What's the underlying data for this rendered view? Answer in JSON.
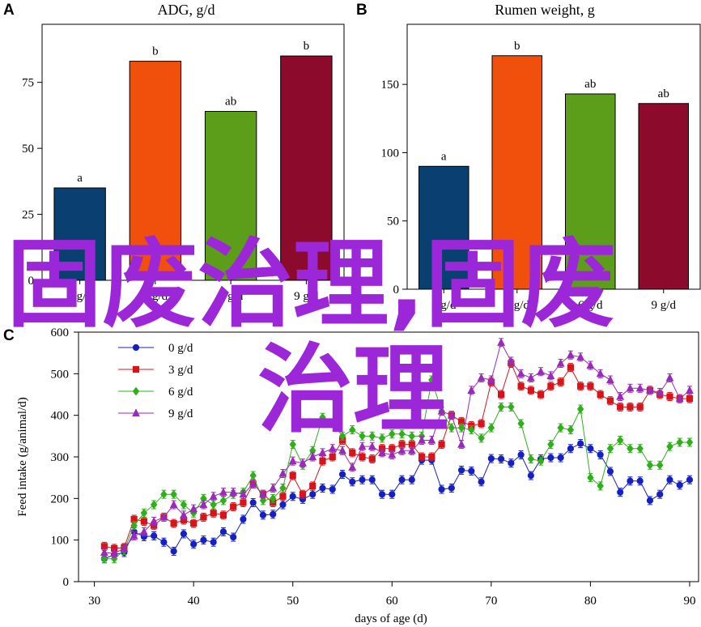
{
  "chart_data": [
    {
      "panel": "A",
      "type": "bar",
      "title": "ADG, g/d",
      "categories": [
        "0 g/d",
        "3 g/d",
        "6 g/d",
        "9 g/d"
      ],
      "values": [
        35,
        83,
        64,
        85
      ],
      "labels": [
        "a",
        "b",
        "ab",
        "b"
      ],
      "colors": [
        "#0a3f72",
        "#f14f0c",
        "#5c9e1a",
        "#8c0a2c"
      ],
      "ylim": [
        0,
        97
      ],
      "yticks": [
        0,
        25,
        50,
        75
      ],
      "xlabel": "",
      "ylabel": ""
    },
    {
      "panel": "B",
      "type": "bar",
      "title": "Rumen weight, g",
      "categories": [
        "0 g/d",
        "3 g/d",
        "6 g/d",
        "9 g/d"
      ],
      "values": [
        90,
        171,
        143,
        136
      ],
      "labels": [
        "a",
        "b",
        "ab",
        "ab"
      ],
      "colors": [
        "#0a3f72",
        "#f14f0c",
        "#5c9e1a",
        "#8c0a2c"
      ],
      "ylim": [
        0,
        194
      ],
      "yticks": [
        0,
        50,
        100,
        150
      ],
      "xlabel": "",
      "ylabel": ""
    },
    {
      "panel": "C",
      "type": "line",
      "xlabel": "days of age (d)",
      "ylabel": "Feed intake (g/animal/d)",
      "xlim": [
        30,
        90
      ],
      "ylim": [
        0,
        600
      ],
      "xticks": [
        30,
        40,
        50,
        60,
        70,
        80,
        90
      ],
      "yticks": [
        0,
        100,
        200,
        300,
        400,
        500,
        600
      ],
      "legend_position": "top-left",
      "x": [
        31,
        32,
        33,
        34,
        35,
        36,
        37,
        38,
        39,
        40,
        41,
        42,
        43,
        44,
        45,
        46,
        47,
        48,
        49,
        50,
        51,
        52,
        53,
        54,
        55,
        56,
        57,
        58,
        59,
        60,
        61,
        62,
        63,
        64,
        65,
        66,
        67,
        68,
        69,
        70,
        71,
        72,
        73,
        74,
        75,
        76,
        77,
        78,
        79,
        80,
        81,
        82,
        83,
        84,
        85,
        86,
        87,
        88,
        89,
        90
      ],
      "series": [
        {
          "name": "0 g/d",
          "color": "#1520c4",
          "marker": "circle",
          "values": [
            55,
            65,
            70,
            120,
            108,
            110,
            95,
            73,
            115,
            90,
            100,
            95,
            120,
            107,
            150,
            190,
            160,
            162,
            185,
            205,
            198,
            210,
            225,
            222,
            258,
            240,
            245,
            245,
            210,
            210,
            245,
            245,
            292,
            292,
            222,
            225,
            268,
            266,
            240,
            296,
            295,
            285,
            305,
            255,
            295,
            298,
            298,
            320,
            332,
            320,
            305,
            265,
            215,
            242,
            242,
            195,
            210,
            245,
            232,
            245
          ]
        },
        {
          "name": "3 g/d",
          "color": "#d8141a",
          "marker": "square",
          "values": [
            85,
            80,
            82,
            150,
            145,
            135,
            155,
            140,
            148,
            140,
            155,
            165,
            160,
            180,
            190,
            235,
            210,
            190,
            205,
            255,
            210,
            230,
            290,
            300,
            340,
            310,
            300,
            295,
            320,
            320,
            330,
            330,
            300,
            300,
            330,
            400,
            385,
            375,
            380,
            480,
            450,
            525,
            470,
            460,
            450,
            470,
            480,
            515,
            470,
            470,
            450,
            435,
            420,
            420,
            420,
            460,
            450,
            445,
            440,
            440
          ]
        },
        {
          "name": "6 g/d",
          "color": "#2fb01a",
          "marker": "diamond",
          "values": [
            55,
            55,
            75,
            135,
            165,
            185,
            210,
            210,
            185,
            165,
            200,
            185,
            195,
            210,
            215,
            255,
            195,
            200,
            225,
            330,
            280,
            315,
            395,
            380,
            350,
            365,
            350,
            350,
            345,
            355,
            355,
            350,
            350,
            485,
            410,
            370,
            370,
            365,
            345,
            370,
            420,
            420,
            380,
            295,
            290,
            330,
            370,
            365,
            415,
            250,
            230,
            320,
            340,
            320,
            320,
            280,
            280,
            325,
            335,
            335
          ]
        },
        {
          "name": "9 g/d",
          "color": "#9a2ab8",
          "marker": "triangle",
          "values": [
            70,
            68,
            80,
            110,
            120,
            145,
            155,
            185,
            160,
            175,
            185,
            205,
            215,
            215,
            210,
            235,
            210,
            225,
            260,
            290,
            285,
            300,
            310,
            320,
            315,
            275,
            325,
            325,
            310,
            305,
            315,
            315,
            340,
            340,
            410,
            400,
            330,
            460,
            490,
            485,
            575,
            530,
            500,
            490,
            505,
            495,
            525,
            545,
            540,
            520,
            500,
            485,
            445,
            465,
            465,
            460,
            455,
            490,
            440,
            460
          ]
        }
      ]
    }
  ],
  "watermark": {
    "line1": "固废治理,固废",
    "line2": "治理"
  }
}
